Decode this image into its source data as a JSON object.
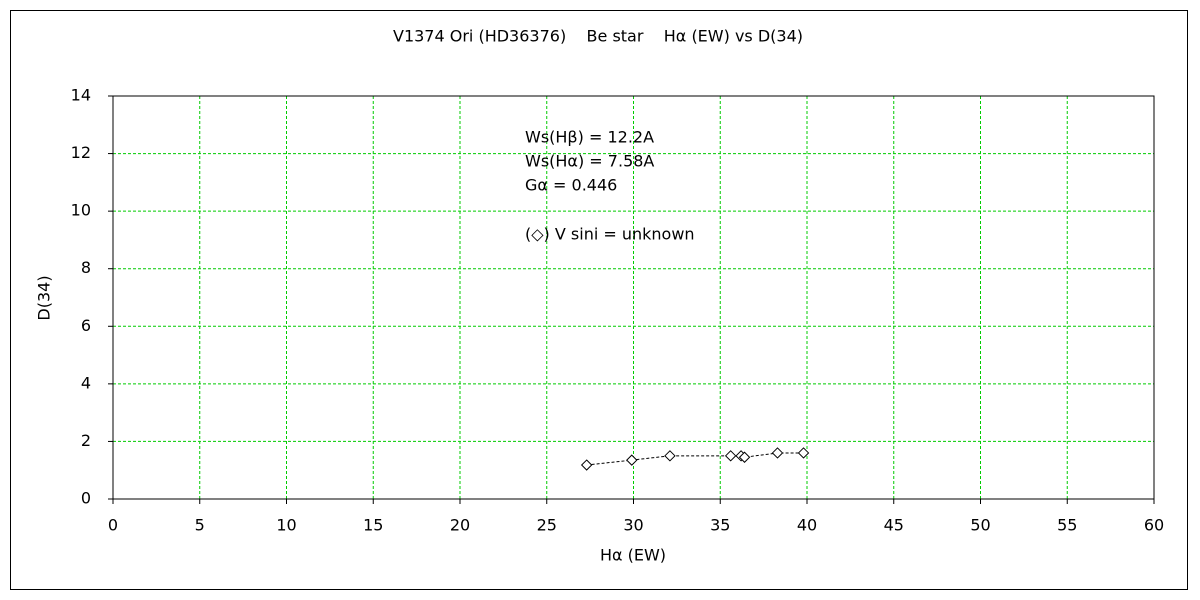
{
  "chart_data": {
    "type": "scatter",
    "title": "V1374 Ori (HD36376)    Be star    Hα (EW) vs D(34)",
    "x_label": "Hα (EW)",
    "y_label": "D(34)",
    "annotations": [
      "Ws(Hβ) = 12.2A",
      "Ws(Hα) = 7.58A",
      "Gα = 0.446",
      "(◇) V sini = unknown"
    ],
    "x": [
      27.3,
      29.9,
      32.1,
      35.6,
      36.2,
      36.4,
      38.3,
      39.8
    ],
    "values": [
      1.18,
      1.35,
      1.5,
      1.5,
      1.5,
      1.45,
      1.6,
      1.6
    ],
    "color": "#000000",
    "marker": "diamond",
    "line_style": "dashed",
    "xlim": [
      0,
      60
    ],
    "xticks": [
      0,
      5,
      10,
      15,
      20,
      25,
      30,
      35,
      40,
      45,
      50,
      55,
      60
    ],
    "ylim": [
      0,
      14
    ],
    "yticks": [
      0,
      2,
      4,
      6,
      8,
      10,
      12,
      14
    ],
    "grid": true,
    "grid_color": "#00cc00"
  }
}
